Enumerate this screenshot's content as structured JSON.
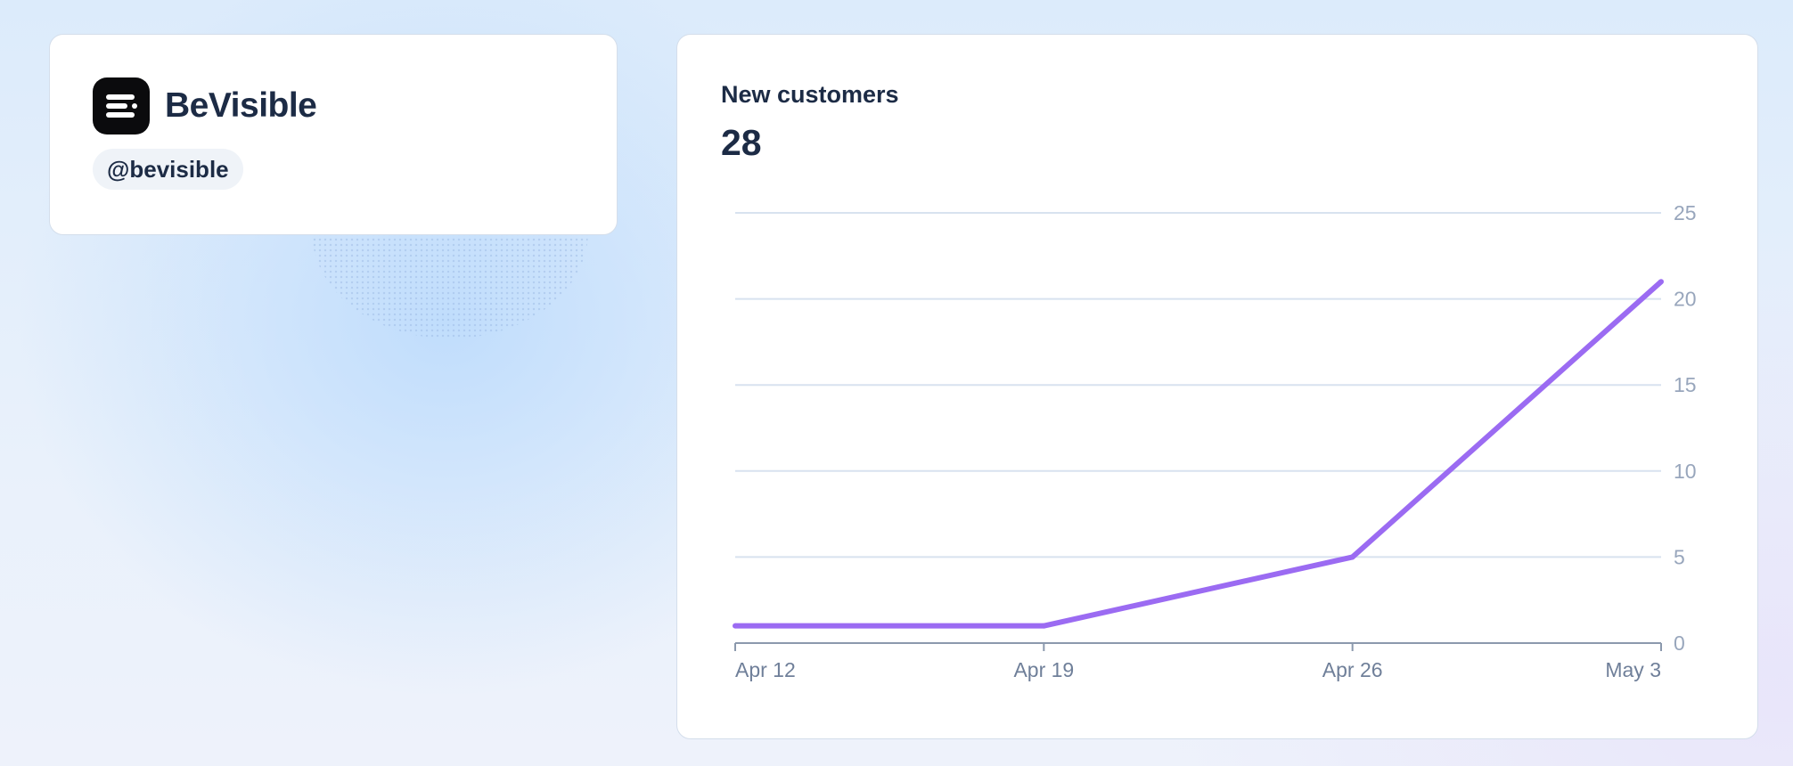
{
  "profile": {
    "name": "BeVisible",
    "handle": "@bevisible",
    "logo_icon": "menu-lines-icon"
  },
  "card": {
    "title": "New customers",
    "total": "28"
  },
  "colors": {
    "line": "#9b6bf2",
    "grid": "#d8e2ef",
    "axis": "#8b99ad"
  },
  "chart_data": {
    "type": "line",
    "x": [
      "Apr 12",
      "Apr 19",
      "Apr 26",
      "May 3"
    ],
    "series": [
      {
        "values": [
          1,
          1,
          5,
          21
        ]
      }
    ],
    "xlabel": "",
    "ylabel": "",
    "ylim": [
      0,
      25
    ],
    "yticks": [
      0,
      5,
      10,
      15,
      20,
      25
    ],
    "grid": true,
    "y_axis_position": "right"
  }
}
